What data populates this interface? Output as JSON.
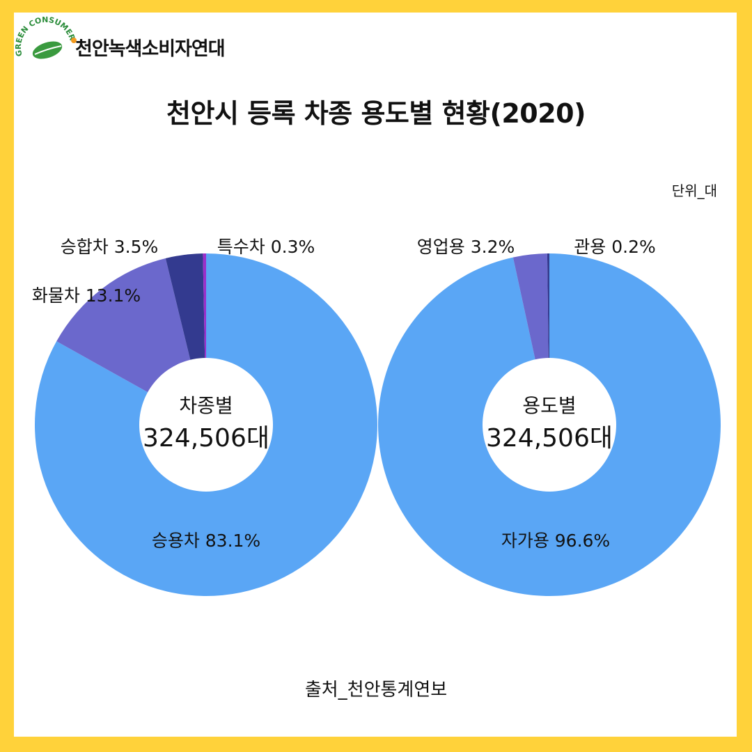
{
  "org": {
    "name": "천안녹색소비자연대",
    "logo_text": "GREEN CONSUMER"
  },
  "title": "천안시 등록 차종 용도별 현황(2020)",
  "unit": "단위_대",
  "source": "출처_천안통계연보",
  "colors": {
    "frame": "#ffd23a",
    "blue": "#5aa6f5",
    "purple": "#6b68cc",
    "navy": "#333a8f",
    "magenta": "#9b2fc9"
  },
  "chart_data": [
    {
      "type": "pie",
      "center_label": "차종별",
      "total_label": "324,506대",
      "slices": [
        {
          "name": "승용차",
          "value": 83.1,
          "label": "승용차 83.1%",
          "color": "#5aa6f5"
        },
        {
          "name": "화물차",
          "value": 13.1,
          "label": "화물차 13.1%",
          "color": "#6b68cc"
        },
        {
          "name": "승합차",
          "value": 3.5,
          "label": "승합차 3.5%",
          "color": "#333a8f"
        },
        {
          "name": "특수차",
          "value": 0.3,
          "label": "특수차 0.3%",
          "color": "#9b2fc9"
        }
      ]
    },
    {
      "type": "pie",
      "center_label": "용도별",
      "total_label": "324,506대",
      "slices": [
        {
          "name": "자가용",
          "value": 96.6,
          "label": "자가용 96.6%",
          "color": "#5aa6f5"
        },
        {
          "name": "영업용",
          "value": 3.2,
          "label": "영업용 3.2%",
          "color": "#6b68cc"
        },
        {
          "name": "관용",
          "value": 0.2,
          "label": "관용 0.2%",
          "color": "#333a8f"
        }
      ]
    }
  ]
}
